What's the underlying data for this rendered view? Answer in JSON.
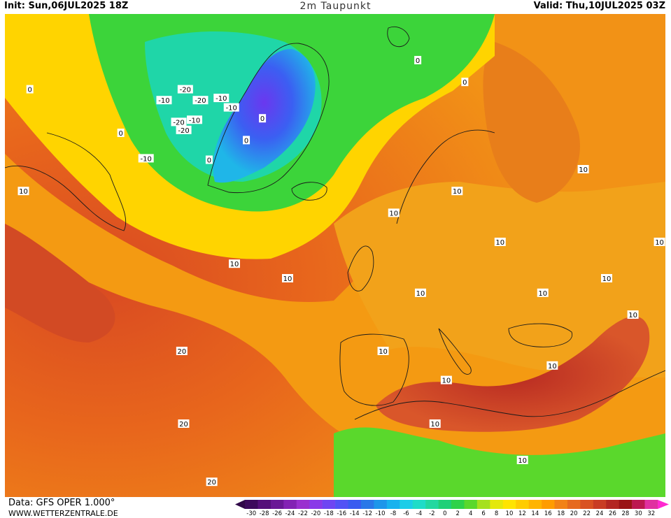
{
  "header": {
    "init_text": "Init: Sun,06JUL2025 18Z",
    "title": "2m Taupunkt",
    "valid_text": "Valid: Thu,10JUL2025 03Z"
  },
  "footer": {
    "data_source": "Data: GFS OPER 1.000°",
    "website": "WWW.WETTERZENTRALE.DE"
  },
  "colorbar": {
    "tick_labels": [
      "-30",
      "-28",
      "-26",
      "-24",
      "-22",
      "-20",
      "-18",
      "-16",
      "-14",
      "-12",
      "-10",
      "-8",
      "-6",
      "-4",
      "-2",
      "0",
      "2",
      "4",
      "6",
      "8",
      "10",
      "12",
      "14",
      "16",
      "18",
      "20",
      "22",
      "24",
      "26",
      "28",
      "30",
      "32"
    ],
    "colors": [
      "#3d0a5c",
      "#55107a",
      "#6a1896",
      "#8322b4",
      "#9a30cf",
      "#8a3ae8",
      "#6e46f2",
      "#5252f5",
      "#3a5cf0",
      "#2a78e8",
      "#1d96ea",
      "#18b2ee",
      "#1ccde8",
      "#1fdcc8",
      "#22d8a0",
      "#1fd078",
      "#2ed24a",
      "#5ad82c",
      "#a6e01e",
      "#e4e80c",
      "#ffe400",
      "#ffcc00",
      "#ffb400",
      "#ff9c00",
      "#f28216",
      "#e66a1e",
      "#d95222",
      "#c93c24",
      "#b32622",
      "#9a1416",
      "#bc1850",
      "#e030a0"
    ],
    "under_color": "#300848",
    "over_color": "#ff28d0"
  },
  "map_labels": {
    "contour_values": [
      {
        "value": "-20",
        "lon": -40,
        "lat": 76
      },
      {
        "value": "-20",
        "lon": -37,
        "lat": 74.5
      },
      {
        "value": "-10",
        "lon": -33,
        "lat": 74.8
      },
      {
        "value": "-10",
        "lon": -44,
        "lat": 74.5
      },
      {
        "value": "-20",
        "lon": -41,
        "lat": 71.5
      },
      {
        "value": "-20",
        "lon": -40,
        "lat": 70.4
      },
      {
        "value": "-10",
        "lon": -38,
        "lat": 71.8
      },
      {
        "value": "-10",
        "lon": -31,
        "lat": 73.5
      },
      {
        "value": "-10",
        "lon": -47,
        "lat": 66.5
      },
      {
        "value": "0",
        "lon": -70,
        "lat": 76
      },
      {
        "value": "0",
        "lon": -52,
        "lat": 70
      },
      {
        "value": "0",
        "lon": -35,
        "lat": 66.3
      },
      {
        "value": "0",
        "lon": -25,
        "lat": 72
      },
      {
        "value": "0",
        "lon": -28,
        "lat": 69
      },
      {
        "value": "0",
        "lon": 5,
        "lat": 80
      },
      {
        "value": "0",
        "lon": 14,
        "lat": 77
      },
      {
        "value": "0",
        "lon": -85,
        "lat": 74
      },
      {
        "value": "10",
        "lon": -108,
        "lat": 74
      },
      {
        "value": "10",
        "lon": -95,
        "lat": 70
      },
      {
        "value": "10",
        "lon": -80,
        "lat": 64
      },
      {
        "value": "10",
        "lon": -70,
        "lat": 62
      },
      {
        "value": "10",
        "lon": -30,
        "lat": 52
      },
      {
        "value": "10",
        "lon": -20,
        "lat": 50
      },
      {
        "value": "10",
        "lon": 0,
        "lat": 59
      },
      {
        "value": "10",
        "lon": 12,
        "lat": 62
      },
      {
        "value": "10",
        "lon": 20,
        "lat": 55
      },
      {
        "value": "10",
        "lon": 5,
        "lat": 48
      },
      {
        "value": "10",
        "lon": 28,
        "lat": 48
      },
      {
        "value": "10",
        "lon": 40,
        "lat": 50
      },
      {
        "value": "10",
        "lon": 50,
        "lat": 55
      },
      {
        "value": "10",
        "lon": 36,
        "lat": 65
      },
      {
        "value": "10",
        "lon": 45,
        "lat": 45
      },
      {
        "value": "10",
        "lon": -2,
        "lat": 40
      },
      {
        "value": "10",
        "lon": 10,
        "lat": 36
      },
      {
        "value": "10",
        "lon": 8,
        "lat": 30
      },
      {
        "value": "10",
        "lon": 30,
        "lat": 38
      },
      {
        "value": "10",
        "lon": 25,
        "lat": 25
      },
      {
        "value": "20",
        "lon": -40,
        "lat": 40
      },
      {
        "value": "20",
        "lon": -40,
        "lat": 30
      },
      {
        "value": "20",
        "lon": -35,
        "lat": 22
      }
    ]
  }
}
